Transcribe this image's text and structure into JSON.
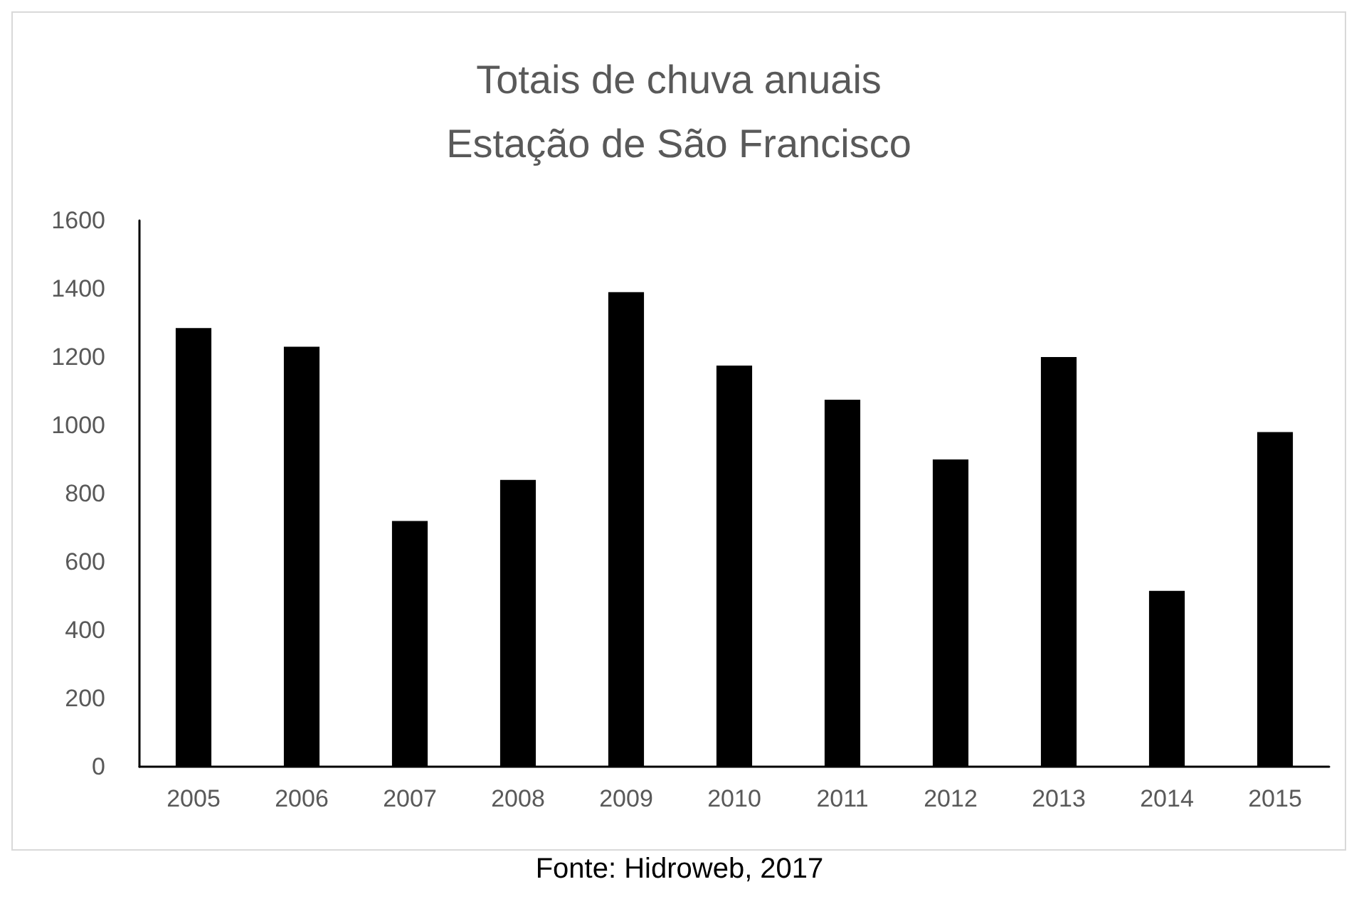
{
  "chart_data": {
    "type": "bar",
    "title": "Totais de chuva anuais",
    "subtitle": "Estação de São Francisco",
    "categories": [
      "2005",
      "2006",
      "2007",
      "2008",
      "2009",
      "2010",
      "2011",
      "2012",
      "2013",
      "2014",
      "2015"
    ],
    "values": [
      1285,
      1230,
      720,
      840,
      1390,
      1175,
      1075,
      900,
      1200,
      515,
      980
    ],
    "color": "#000000",
    "ylim": [
      0,
      1600
    ],
    "yticks": [
      0,
      200,
      400,
      600,
      800,
      1000,
      1200,
      1400,
      1600
    ],
    "annotations": [
      "Fonte: Hidroweb, 2017"
    ]
  }
}
